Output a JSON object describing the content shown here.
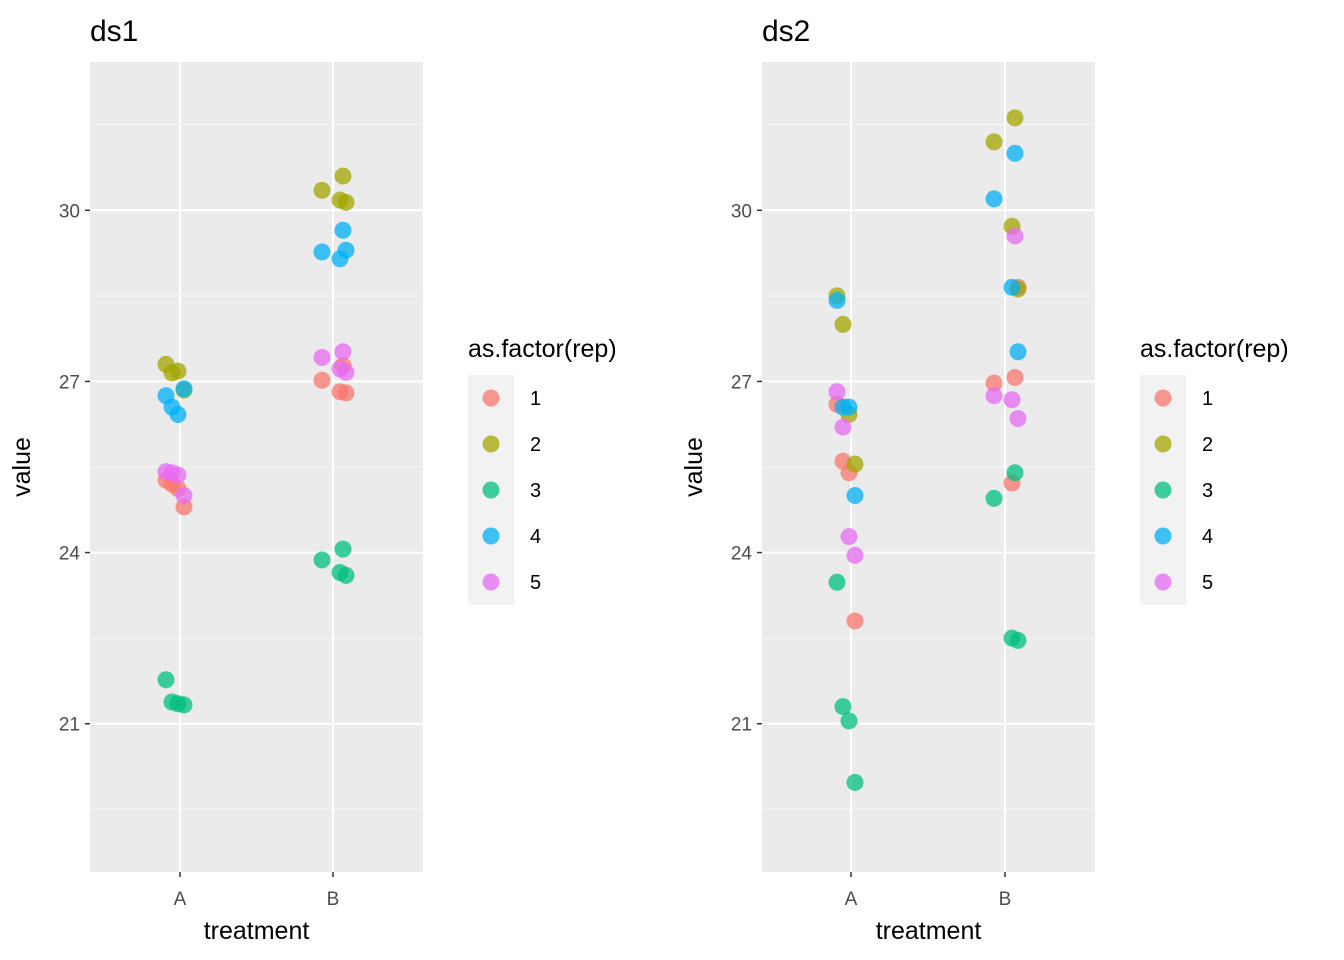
{
  "chart_data": [
    {
      "type": "scatter",
      "title": "ds1",
      "xlabel": "treatment",
      "ylabel": "value",
      "categories": [
        "A",
        "B"
      ],
      "y_ticks": [
        21,
        24,
        27,
        30
      ],
      "ylim": [
        18.4,
        32.6
      ],
      "grid": true,
      "legend": {
        "title": "as.factor(rep)",
        "position": "right"
      },
      "series": [
        {
          "name": "1",
          "color": "#F8766D",
          "points": [
            {
              "x": "A",
              "y": 25.27
            },
            {
              "x": "A",
              "y": 25.2
            },
            {
              "x": "A",
              "y": 25.12
            },
            {
              "x": "A",
              "y": 24.8
            },
            {
              "x": "B",
              "y": 27.28
            },
            {
              "x": "B",
              "y": 27.02
            },
            {
              "x": "B",
              "y": 26.82
            },
            {
              "x": "B",
              "y": 26.8
            }
          ]
        },
        {
          "name": "2",
          "color": "#A3A500",
          "points": [
            {
              "x": "A",
              "y": 27.3
            },
            {
              "x": "A",
              "y": 27.15
            },
            {
              "x": "A",
              "y": 27.18
            },
            {
              "x": "A",
              "y": 26.85
            },
            {
              "x": "B",
              "y": 30.6
            },
            {
              "x": "B",
              "y": 30.35
            },
            {
              "x": "B",
              "y": 30.18
            },
            {
              "x": "B",
              "y": 30.14
            }
          ]
        },
        {
          "name": "3",
          "color": "#00BF7D",
          "points": [
            {
              "x": "A",
              "y": 21.77
            },
            {
              "x": "A",
              "y": 21.38
            },
            {
              "x": "A",
              "y": 21.35
            },
            {
              "x": "A",
              "y": 21.33
            },
            {
              "x": "B",
              "y": 24.06
            },
            {
              "x": "B",
              "y": 23.87
            },
            {
              "x": "B",
              "y": 23.65
            },
            {
              "x": "B",
              "y": 23.6
            }
          ]
        },
        {
          "name": "4",
          "color": "#00B0F6",
          "points": [
            {
              "x": "A",
              "y": 26.75
            },
            {
              "x": "A",
              "y": 26.55
            },
            {
              "x": "A",
              "y": 26.42
            },
            {
              "x": "A",
              "y": 26.87
            },
            {
              "x": "B",
              "y": 29.65
            },
            {
              "x": "B",
              "y": 29.27
            },
            {
              "x": "B",
              "y": 29.15
            },
            {
              "x": "B",
              "y": 29.3
            }
          ]
        },
        {
          "name": "5",
          "color": "#E76BF3",
          "points": [
            {
              "x": "A",
              "y": 25.42
            },
            {
              "x": "A",
              "y": 25.4
            },
            {
              "x": "A",
              "y": 25.36
            },
            {
              "x": "A",
              "y": 25.0
            },
            {
              "x": "B",
              "y": 27.52
            },
            {
              "x": "B",
              "y": 27.42
            },
            {
              "x": "B",
              "y": 27.22
            },
            {
              "x": "B",
              "y": 27.16
            }
          ]
        }
      ]
    },
    {
      "type": "scatter",
      "title": "ds2",
      "xlabel": "treatment",
      "ylabel": "value",
      "categories": [
        "A",
        "B"
      ],
      "y_ticks": [
        21,
        24,
        27,
        30
      ],
      "ylim": [
        18.4,
        32.6
      ],
      "grid": true,
      "legend": {
        "title": "as.factor(rep)",
        "position": "right"
      },
      "series": [
        {
          "name": "1",
          "color": "#F8766D",
          "points": [
            {
              "x": "A",
              "y": 26.6
            },
            {
              "x": "A",
              "y": 25.6
            },
            {
              "x": "A",
              "y": 25.4
            },
            {
              "x": "A",
              "y": 22.8
            },
            {
              "x": "B",
              "y": 27.07
            },
            {
              "x": "B",
              "y": 26.97
            },
            {
              "x": "B",
              "y": 25.22
            },
            {
              "x": "B",
              "y": 28.65
            }
          ]
        },
        {
          "name": "2",
          "color": "#A3A500",
          "points": [
            {
              "x": "A",
              "y": 28.5
            },
            {
              "x": "A",
              "y": 28.0
            },
            {
              "x": "A",
              "y": 26.42
            },
            {
              "x": "A",
              "y": 25.55
            },
            {
              "x": "B",
              "y": 31.62
            },
            {
              "x": "B",
              "y": 31.2
            },
            {
              "x": "B",
              "y": 29.72
            },
            {
              "x": "B",
              "y": 28.62
            }
          ]
        },
        {
          "name": "3",
          "color": "#00BF7D",
          "points": [
            {
              "x": "A",
              "y": 23.48
            },
            {
              "x": "A",
              "y": 21.3
            },
            {
              "x": "A",
              "y": 21.05
            },
            {
              "x": "A",
              "y": 19.97
            },
            {
              "x": "B",
              "y": 25.4
            },
            {
              "x": "B",
              "y": 24.95
            },
            {
              "x": "B",
              "y": 22.5
            },
            {
              "x": "B",
              "y": 22.46
            }
          ]
        },
        {
          "name": "4",
          "color": "#00B0F6",
          "points": [
            {
              "x": "A",
              "y": 28.42
            },
            {
              "x": "A",
              "y": 26.55
            },
            {
              "x": "A",
              "y": 26.55
            },
            {
              "x": "A",
              "y": 25.0
            },
            {
              "x": "B",
              "y": 31.0
            },
            {
              "x": "B",
              "y": 30.2
            },
            {
              "x": "B",
              "y": 28.65
            },
            {
              "x": "B",
              "y": 27.52
            }
          ]
        },
        {
          "name": "5",
          "color": "#E76BF3",
          "points": [
            {
              "x": "A",
              "y": 26.82
            },
            {
              "x": "A",
              "y": 26.2
            },
            {
              "x": "A",
              "y": 24.28
            },
            {
              "x": "A",
              "y": 23.95
            },
            {
              "x": "B",
              "y": 29.55
            },
            {
              "x": "B",
              "y": 26.75
            },
            {
              "x": "B",
              "y": 26.68
            },
            {
              "x": "B",
              "y": 26.35
            }
          ]
        }
      ]
    }
  ]
}
